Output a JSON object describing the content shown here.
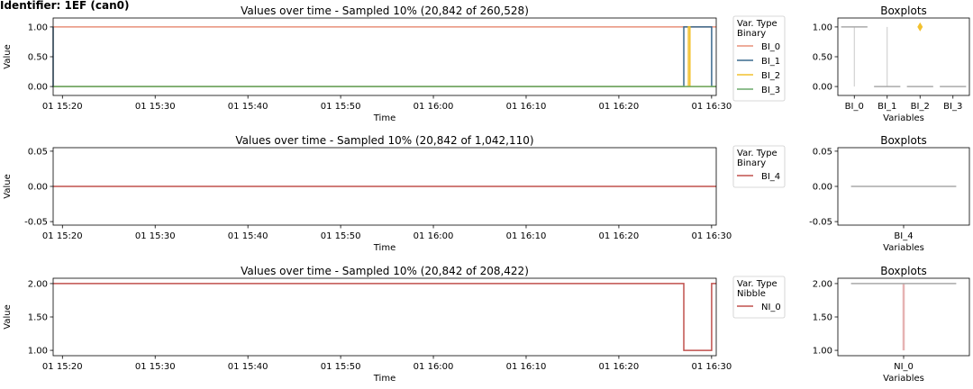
{
  "figure_title": "Identifier: 1EF (can0)",
  "chart_data": [
    {
      "type": "line",
      "title": "Values over time - Sampled 10% (20,842 of 260,528)",
      "xlabel": "Time",
      "ylabel": "Value",
      "x_ticks": [
        "01 15:20",
        "01 15:30",
        "01 15:40",
        "01 15:50",
        "01 16:00",
        "01 16:10",
        "01 16:20",
        "01 16:30"
      ],
      "xlim": [
        "01 15:19:00",
        "01 16:30:30"
      ],
      "y_ticks": [
        "0.00",
        "0.50",
        "1.00"
      ],
      "ylim": [
        -0.15,
        1.15
      ],
      "legend": {
        "title": "Var. Type",
        "subtitle": "Binary",
        "position": "outside-right"
      },
      "series": [
        {
          "name": "BI_0",
          "color": "#e8907a",
          "points": [
            [
              "01 15:19:00",
              1
            ],
            [
              "01 16:30:30",
              1
            ]
          ]
        },
        {
          "name": "BI_1",
          "color": "#3a6a8e",
          "points": [
            [
              "01 15:19:00",
              1
            ],
            [
              "01 15:19:00",
              0
            ],
            [
              "01 16:27:00",
              0
            ],
            [
              "01 16:27:00",
              1
            ],
            [
              "01 16:30:00",
              1
            ],
            [
              "01 16:30:00",
              0
            ],
            [
              "01 16:30:30",
              0
            ]
          ]
        },
        {
          "name": "BI_2",
          "color": "#f2c12e",
          "points": [
            [
              "01 15:19:00",
              0
            ],
            [
              "01 16:27:30",
              0
            ],
            [
              "01 16:27:30",
              1
            ],
            [
              "01 16:27:40",
              1
            ],
            [
              "01 16:27:40",
              0
            ],
            [
              "01 16:30:30",
              0
            ]
          ]
        },
        {
          "name": "BI_3",
          "color": "#6aa86a",
          "points": [
            [
              "01 15:19:00",
              0
            ],
            [
              "01 16:30:30",
              0
            ]
          ]
        }
      ],
      "boxplot": {
        "title": "Boxplots",
        "xlabel": "Variables",
        "categories": [
          "BI_0",
          "BI_1",
          "BI_2",
          "BI_3"
        ],
        "y_ticks": [
          "0.00",
          "0.50",
          "1.00"
        ],
        "ylim": [
          -0.15,
          1.15
        ],
        "boxes": [
          {
            "median": 1,
            "q1": 1,
            "q3": 1,
            "whisker_low": 0,
            "whisker_high": 1,
            "outliers": []
          },
          {
            "median": 0,
            "q1": 0,
            "q3": 0,
            "whisker_low": 0,
            "whisker_high": 1,
            "outliers": []
          },
          {
            "median": 0,
            "q1": 0,
            "q3": 0,
            "whisker_low": 0,
            "whisker_high": 0,
            "outliers": [
              1
            ]
          },
          {
            "median": 0,
            "q1": 0,
            "q3": 0,
            "whisker_low": 0,
            "whisker_high": 0,
            "outliers": []
          }
        ]
      }
    },
    {
      "type": "line",
      "title": "Values over time - Sampled 10% (20,842 of 1,042,110)",
      "xlabel": "Time",
      "ylabel": "Value",
      "x_ticks": [
        "01 15:20",
        "01 15:30",
        "01 15:40",
        "01 15:50",
        "01 16:00",
        "01 16:10",
        "01 16:20",
        "01 16:30"
      ],
      "xlim": [
        "01 15:19:00",
        "01 16:30:30"
      ],
      "y_ticks": [
        "-0.05",
        "0.00",
        "0.05"
      ],
      "ylim": [
        -0.055,
        0.055
      ],
      "legend": {
        "title": "Var. Type",
        "subtitle": "Binary",
        "position": "outside-right"
      },
      "series": [
        {
          "name": "BI_4",
          "color": "#c0504d",
          "points": [
            [
              "01 15:19:00",
              0
            ],
            [
              "01 16:30:30",
              0
            ]
          ]
        }
      ],
      "boxplot": {
        "title": "Boxplots",
        "xlabel": "Variables",
        "categories": [
          "BI_4"
        ],
        "y_ticks": [
          "-0.05",
          "0.00",
          "0.05"
        ],
        "ylim": [
          -0.055,
          0.055
        ],
        "boxes": [
          {
            "median": 0,
            "q1": 0,
            "q3": 0,
            "whisker_low": 0,
            "whisker_high": 0,
            "outliers": []
          }
        ]
      }
    },
    {
      "type": "line",
      "title": "Values over time - Sampled 10% (20,842 of 208,422)",
      "xlabel": "Time",
      "ylabel": "Value",
      "x_ticks": [
        "01 15:20",
        "01 15:30",
        "01 15:40",
        "01 15:50",
        "01 16:00",
        "01 16:10",
        "01 16:20",
        "01 16:30"
      ],
      "xlim": [
        "01 15:19:00",
        "01 16:30:30"
      ],
      "y_ticks": [
        "1.00",
        "1.50",
        "2.00"
      ],
      "ylim": [
        0.92,
        2.08
      ],
      "legend": {
        "title": "Var. Type",
        "subtitle": "Nibble",
        "position": "outside-right"
      },
      "series": [
        {
          "name": "NI_0",
          "color": "#c0504d",
          "points": [
            [
              "01 15:19:00",
              2
            ],
            [
              "01 16:27:00",
              2
            ],
            [
              "01 16:27:00",
              1
            ],
            [
              "01 16:30:00",
              1
            ],
            [
              "01 16:30:00",
              2
            ],
            [
              "01 16:30:30",
              2
            ]
          ]
        }
      ],
      "boxplot": {
        "title": "Boxplots",
        "xlabel": "Variables",
        "categories": [
          "NI_0"
        ],
        "y_ticks": [
          "1.00",
          "1.50",
          "2.00"
        ],
        "ylim": [
          0.92,
          2.08
        ],
        "boxes": [
          {
            "median": 2,
            "q1": 2,
            "q3": 2,
            "whisker_low": 1,
            "whisker_high": 2,
            "outliers": []
          }
        ]
      }
    }
  ]
}
